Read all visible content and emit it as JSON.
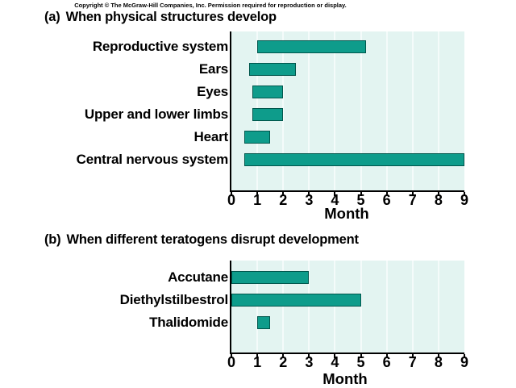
{
  "copyright": "Copyright © The McGraw-Hill Companies, Inc. Permission required for reproduction or display.",
  "colors": {
    "bar_fill": "#0e9c8b",
    "bar_border": "#00564c",
    "plot_bg": "#e3f4f1",
    "gridline": "#f4fbfa",
    "axis": "#000000",
    "text": "#000000"
  },
  "chart_data": [
    {
      "type": "bar",
      "orientation": "horizontal",
      "title_prefix": "(a)",
      "title": "When physical structures develop",
      "xlabel": "Month",
      "xlim": [
        0,
        9
      ],
      "x_ticks": [
        "0",
        "1",
        "2",
        "3",
        "4",
        "5",
        "6",
        "7",
        "8",
        "9"
      ],
      "grid": true,
      "legend": "none",
      "categories": [
        "Reproductive system",
        "Ears",
        "Eyes",
        "Upper and lower limbs",
        "Heart",
        "Central nervous system"
      ],
      "ranges_months": [
        [
          1.0,
          5.2
        ],
        [
          0.7,
          2.5
        ],
        [
          0.8,
          2.0
        ],
        [
          0.8,
          2.0
        ],
        [
          0.5,
          1.5
        ],
        [
          0.5,
          9.0
        ]
      ]
    },
    {
      "type": "bar",
      "orientation": "horizontal",
      "title_prefix": "(b)",
      "title": "When different teratogens disrupt development",
      "xlabel": "Month",
      "xlim": [
        0,
        9
      ],
      "x_ticks": [
        "0",
        "1",
        "2",
        "3",
        "4",
        "5",
        "6",
        "7",
        "8",
        "9"
      ],
      "grid": true,
      "legend": "none",
      "categories": [
        "Accutane",
        "Diethylstilbestrol",
        "Thalidomide"
      ],
      "ranges_months": [
        [
          0,
          3.0
        ],
        [
          0,
          5.0
        ],
        [
          1.0,
          1.5
        ]
      ]
    }
  ]
}
